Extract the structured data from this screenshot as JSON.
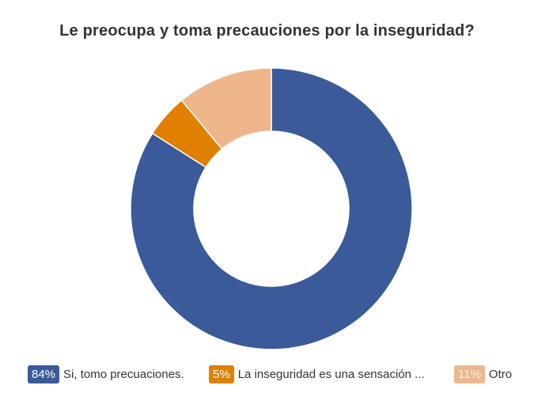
{
  "chart_data": {
    "type": "pie",
    "variant": "donut",
    "title": "Le preocupa y toma precauciones por la inseguridad?",
    "slices": [
      {
        "label": "Si, tomo precuaciones.",
        "value": 84,
        "display": "84%",
        "color": "#3a5a9a"
      },
      {
        "label": "La inseguridad es una sensación ...",
        "value": 5,
        "display": "5%",
        "color": "#e07f00"
      },
      {
        "label": "Otro",
        "value": 11,
        "display": "11%",
        "color": "#efb68c"
      }
    ],
    "legend_position": "bottom"
  }
}
